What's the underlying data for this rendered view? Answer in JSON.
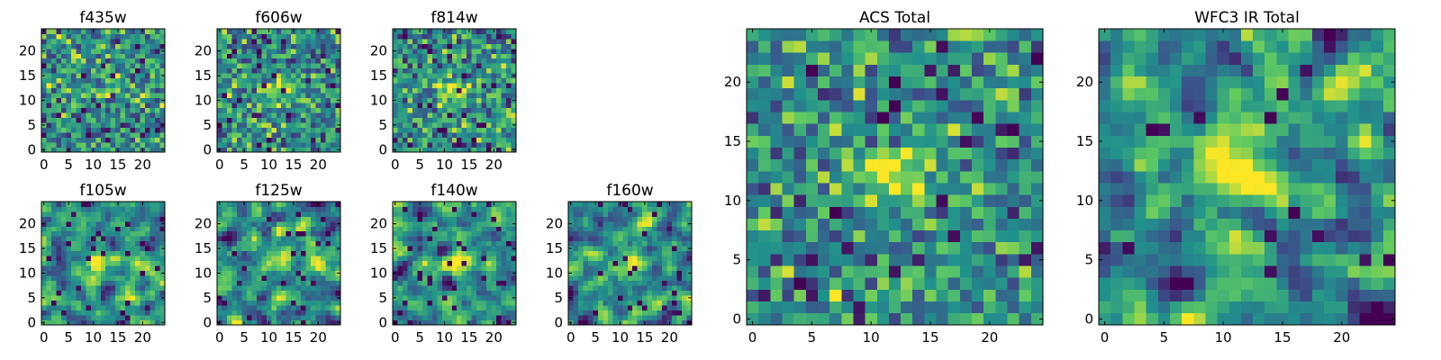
{
  "figure": {
    "background": "#ffffff",
    "colormap": [
      "#440154",
      "#3b528b",
      "#21918c",
      "#5ec962",
      "#fde725"
    ]
  },
  "chart_data": [
    {
      "type": "heatmap",
      "id": "f435w",
      "title": "f435w",
      "grid": 25,
      "seed": 11,
      "blob": 0.25,
      "smooth": 0,
      "dark": 0.03,
      "contrast": 0.9,
      "x_ticks": [
        "0",
        "5",
        "10",
        "15",
        "20"
      ],
      "y_ticks": [
        "0",
        "5",
        "10",
        "15",
        "20"
      ],
      "xlim": [
        -0.5,
        24.5
      ],
      "ylim": [
        -0.5,
        24.5
      ]
    },
    {
      "type": "heatmap",
      "id": "f606w",
      "title": "f606w",
      "grid": 25,
      "seed": 23,
      "blob": 0.45,
      "smooth": 0,
      "dark": 0.03,
      "contrast": 0.9,
      "x_ticks": [
        "0",
        "5",
        "10",
        "15",
        "20"
      ],
      "y_ticks": [
        "0",
        "5",
        "10",
        "15",
        "20"
      ],
      "xlim": [
        -0.5,
        24.5
      ],
      "ylim": [
        -0.5,
        24.5
      ]
    },
    {
      "type": "heatmap",
      "id": "f814w",
      "title": "f814w",
      "grid": 25,
      "seed": 37,
      "blob": 0.55,
      "smooth": 0,
      "dark": 0.04,
      "contrast": 0.9,
      "x_ticks": [
        "0",
        "5",
        "10",
        "15",
        "20"
      ],
      "y_ticks": [
        "0",
        "5",
        "10",
        "15",
        "20"
      ],
      "xlim": [
        -0.5,
        24.5
      ],
      "ylim": [
        -0.5,
        24.5
      ]
    },
    {
      "type": "heatmap",
      "id": "f105w",
      "title": "f105w",
      "grid": 25,
      "seed": 41,
      "blob": 0.55,
      "smooth": 1,
      "dark": 0.05,
      "contrast": 1.25,
      "x_ticks": [
        "0",
        "5",
        "10",
        "15",
        "20"
      ],
      "y_ticks": [
        "0",
        "5",
        "10",
        "15",
        "20"
      ],
      "xlim": [
        -0.5,
        24.5
      ],
      "ylim": [
        -0.5,
        24.5
      ]
    },
    {
      "type": "heatmap",
      "id": "f125w",
      "title": "f125w",
      "grid": 25,
      "seed": 53,
      "blob": 0.35,
      "smooth": 1,
      "dark": 0.05,
      "contrast": 1.2,
      "x_ticks": [
        "0",
        "5",
        "10",
        "15",
        "20"
      ],
      "y_ticks": [
        "0",
        "5",
        "10",
        "15",
        "20"
      ],
      "xlim": [
        -0.5,
        24.5
      ],
      "ylim": [
        -0.5,
        24.5
      ]
    },
    {
      "type": "heatmap",
      "id": "f140w",
      "title": "f140w",
      "grid": 25,
      "seed": 67,
      "blob": 0.5,
      "smooth": 1,
      "dark": 0.05,
      "contrast": 1.2,
      "x_ticks": [
        "0",
        "5",
        "10",
        "15",
        "20"
      ],
      "y_ticks": [
        "0",
        "5",
        "10",
        "15",
        "20"
      ],
      "xlim": [
        -0.5,
        24.5
      ],
      "ylim": [
        -0.5,
        24.5
      ]
    },
    {
      "type": "heatmap",
      "id": "f160w",
      "title": "f160w",
      "grid": 25,
      "seed": 79,
      "blob": 0.5,
      "smooth": 1,
      "dark": 0.05,
      "contrast": 1.2,
      "x_ticks": [
        "0",
        "5",
        "10",
        "15",
        "20"
      ],
      "y_ticks": [
        "0",
        "5",
        "10",
        "15",
        "20"
      ],
      "xlim": [
        -0.5,
        24.5
      ],
      "ylim": [
        -0.5,
        24.5
      ]
    },
    {
      "type": "heatmap",
      "id": "acs_total",
      "title": "ACS Total",
      "grid": 25,
      "seed": 97,
      "blob": 0.6,
      "smooth": 0,
      "dark": 0.025,
      "contrast": 0.85,
      "x_ticks": [
        "0",
        "5",
        "10",
        "15",
        "20"
      ],
      "y_ticks": [
        "0",
        "5",
        "10",
        "15",
        "20"
      ],
      "xlim": [
        -0.5,
        24.5
      ],
      "ylim": [
        -0.5,
        24.5
      ]
    },
    {
      "type": "heatmap",
      "id": "wfc3_ir_total",
      "title": "WFC3 IR Total",
      "grid": 25,
      "seed": 113,
      "blob": 0.75,
      "smooth": 1,
      "dark": 0.03,
      "contrast": 1.3,
      "x_ticks": [
        "0",
        "5",
        "10",
        "15",
        "20"
      ],
      "y_ticks": [
        "0",
        "5",
        "10",
        "15",
        "20"
      ],
      "xlim": [
        -0.5,
        24.5
      ],
      "ylim": [
        -0.5,
        24.5
      ]
    }
  ]
}
